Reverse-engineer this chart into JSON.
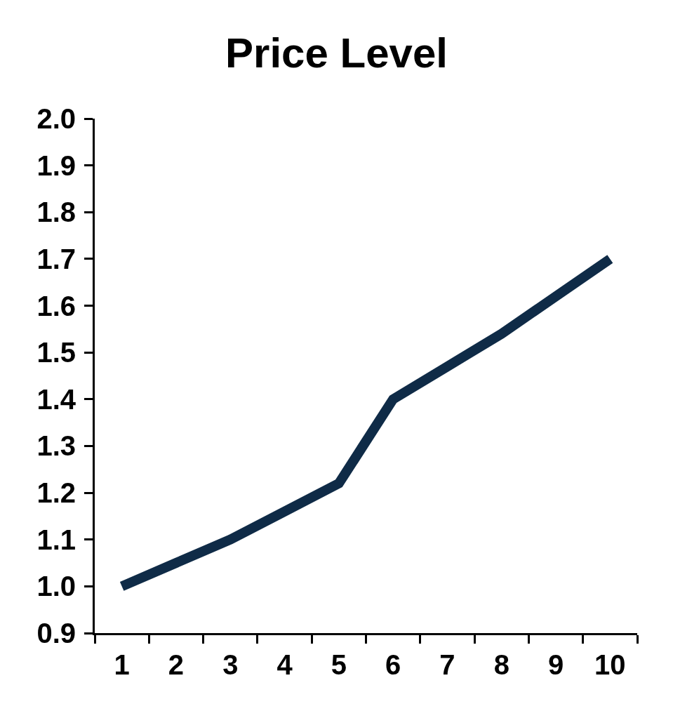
{
  "chart_data": {
    "type": "line",
    "title": "Price Level",
    "categories": [
      "1",
      "2",
      "3",
      "4",
      "5",
      "6",
      "7",
      "8",
      "9",
      "10"
    ],
    "series": [
      {
        "color": "#0f2b47",
        "values": [
          1.0,
          1.05,
          1.1,
          1.16,
          1.22,
          1.4,
          1.47,
          1.54,
          1.62,
          1.7
        ]
      }
    ],
    "ylim": [
      0.9,
      2.0
    ],
    "yticks": [
      0.9,
      {
        "value": 1,
        "label": "1.0"
      },
      1.1,
      1.2,
      1.3,
      1.4,
      1.5,
      1.6,
      1.7,
      1.8,
      1.9,
      {
        "value": 2,
        "label": "2.0"
      }
    ],
    "line_style": "solid",
    "marker": "none"
  }
}
